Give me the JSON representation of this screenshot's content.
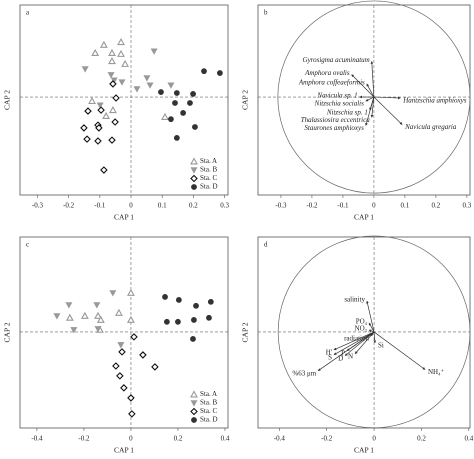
{
  "chart_data": [
    {
      "type": "scatter",
      "label": "a",
      "xlabel": "CAP 1",
      "ylabel": "CAP 2",
      "xlim": [
        -0.356,
        0.311
      ],
      "ylim": [
        -0.314,
        0.295
      ],
      "xticks": [
        -0.3,
        -0.2,
        -0.1,
        0,
        0.1,
        0.2,
        0.3
      ],
      "yticks": [],
      "legend": "lower right",
      "series": [
        {
          "name": "Sta. A",
          "color": "#999999",
          "marker": "triangle-up-open",
          "x": [
            -0.087,
            -0.032,
            -0.115,
            -0.061,
            -0.032,
            -0.019,
            -0.061,
            -0.125,
            -0.058,
            -0.08,
            0.109
          ],
          "values": [
            0.167,
            0.176,
            0.141,
            0.141,
            0.138,
            0.106,
            0.115,
            -0.013,
            -0.042,
            -0.061,
            -0.064
          ]
        },
        {
          "name": "Sta. B",
          "color": "#999999",
          "marker": "triangle-down-filled",
          "x": [
            0.074,
            -0.147,
            -0.064,
            -0.054,
            0.051,
            0.061,
            0.128,
            -0.099,
            -0.029,
            0.019
          ],
          "values": [
            0.147,
            0.09,
            0.071,
            0.054,
            0.061,
            0.038,
            0.038,
            -0.026,
            0.048,
            0.026
          ]
        },
        {
          "name": "Sta. C",
          "color": "#111111",
          "marker": "diamond-open",
          "x": [
            -0.058,
            -0.048,
            -0.096,
            -0.138,
            -0.106,
            -0.051,
            -0.151,
            -0.103,
            -0.141,
            -0.106,
            -0.061,
            -0.087
          ],
          "values": [
            0.042,
            -0.003,
            -0.042,
            -0.045,
            -0.09,
            -0.08,
            -0.099,
            -0.099,
            -0.135,
            -0.141,
            -0.138,
            -0.234
          ]
        },
        {
          "name": "Sta. D",
          "color": "#333333",
          "marker": "circle-filled",
          "x": [
            0.234,
            0.285,
            0.096,
            0.147,
            0.199,
            0.141,
            0.189,
            0.167,
            0.128,
            0.205,
            0.147
          ],
          "values": [
            0.083,
            0.077,
            0.016,
            0.013,
            0.01,
            -0.019,
            -0.019,
            -0.051,
            -0.071,
            -0.096,
            -0.131
          ]
        }
      ]
    },
    {
      "type": "biplot",
      "label": "b",
      "xlabel": "CAP 1",
      "ylabel": "CAP 2",
      "xlim": [
        -0.374,
        0.31
      ],
      "ylim": [
        -0.314,
        0.295
      ],
      "xticks": [
        -0.3,
        -0.2,
        -0.1,
        0,
        0.1,
        0.2,
        0.3
      ],
      "yticks": [],
      "circle_radius": 0.31,
      "italic": true,
      "vectors": [
        {
          "name": "Gyrosigma acuminatum",
          "x": -0.007,
          "y": 0.114
        },
        {
          "name": "Amphora ovalis",
          "x": -0.072,
          "y": 0.072
        },
        {
          "name": "Amphora coffeaeformis",
          "x": -0.023,
          "y": 0.042
        },
        {
          "name": "Navicula sp. 1",
          "x": -0.046,
          "y": 0.0
        },
        {
          "name": "Nitzschia socialis",
          "x": -0.026,
          "y": -0.013
        },
        {
          "name": "Nitzschia sp. 1",
          "x": -0.013,
          "y": -0.042
        },
        {
          "name": "Thalassiosira eccentrica",
          "x": -0.007,
          "y": -0.065
        },
        {
          "name": "Staurones amphioxys",
          "x": -0.026,
          "y": -0.091
        },
        {
          "name": "Navicula gregaria",
          "x": 0.091,
          "y": -0.088
        },
        {
          "name": "Hantzschia amphioxys",
          "x": 0.085,
          "y": -0.003
        }
      ]
    },
    {
      "type": "scatter",
      "label": "c",
      "xlabel": "CAP 1",
      "ylabel": "CAP 2",
      "xlim": [
        -0.472,
        0.413
      ],
      "ylim": [
        -0.409,
        0.404
      ],
      "xticks": [
        -0.4,
        -0.2,
        0,
        0.2,
        0.4
      ],
      "yticks": [],
      "legend": "lower right",
      "series": [
        {
          "name": "Sta. A",
          "color": "#999999",
          "marker": "triangle-up-open",
          "x": [
            0,
            -0.051,
            -0.196,
            -0.14,
            -0.128,
            -0.26,
            -0.132,
            0
          ],
          "values": [
            0.166,
            0.081,
            0.068,
            0.068,
            0.051,
            0.06,
            0.009,
            0.051
          ]
        },
        {
          "name": "Sta. B",
          "color": "#999999",
          "marker": "triangle-down-filled",
          "x": [
            -0.077,
            -0.264,
            -0.145,
            -0.243,
            -0.14,
            -0.043,
            -0.315
          ],
          "values": [
            0.166,
            0.115,
            0.115,
            0.009,
            0.013,
            -0.055,
            0.068
          ]
        },
        {
          "name": "Sta. C",
          "color": "#111111",
          "marker": "diamond-open",
          "x": [
            0.013,
            -0.038,
            -0.064,
            -0.047,
            -0.03,
            0,
            0.004,
            0.102,
            0.051
          ],
          "values": [
            -0.021,
            -0.085,
            -0.145,
            -0.187,
            -0.238,
            -0.281,
            -0.349,
            -0.149,
            -0.098
          ]
        },
        {
          "name": "Sta. D",
          "color": "#333333",
          "marker": "circle-filled",
          "x": [
            0.145,
            0.204,
            0.277,
            0.34,
            0.332,
            0.268,
            0.2,
            0.153,
            0.264
          ],
          "values": [
            0.149,
            0.136,
            0.111,
            0.128,
            0.06,
            0.051,
            0.043,
            0.043,
            -0.03
          ]
        }
      ]
    },
    {
      "type": "biplot",
      "label": "d",
      "xlabel": "CAP 1",
      "ylabel": "CAP 2",
      "xlim": [
        -0.49,
        0.405
      ],
      "ylim": [
        -0.409,
        0.404
      ],
      "xticks": [
        -0.4,
        -0.2,
        0,
        0.2,
        0.4
      ],
      "yticks": [],
      "circle_radius": 0.405,
      "italic": false,
      "vectors": [
        {
          "name": "salinity",
          "x": -0.03,
          "y": 0.131
        },
        {
          "name": "PO₄",
          "x": -0.021,
          "y": 0.038
        },
        {
          "name": "NO₃",
          "x": -0.021,
          "y": 0.008
        },
        {
          "name": "radiation",
          "x": -0.013,
          "y": -0.017
        },
        {
          "name": "Si",
          "x": 0.004,
          "y": -0.046
        },
        {
          "name": "H'",
          "x": -0.169,
          "y": -0.076
        },
        {
          "name": "S",
          "x": -0.169,
          "y": -0.097
        },
        {
          "name": "P",
          "x": -0.114,
          "y": -0.08
        },
        {
          "name": "D",
          "x": -0.122,
          "y": -0.101
        },
        {
          "name": "N",
          "x": -0.08,
          "y": -0.093
        },
        {
          "name": "%63 μm",
          "x": -0.236,
          "y": -0.165
        },
        {
          "name": "NH₄⁺",
          "x": 0.215,
          "y": -0.16
        }
      ]
    }
  ]
}
